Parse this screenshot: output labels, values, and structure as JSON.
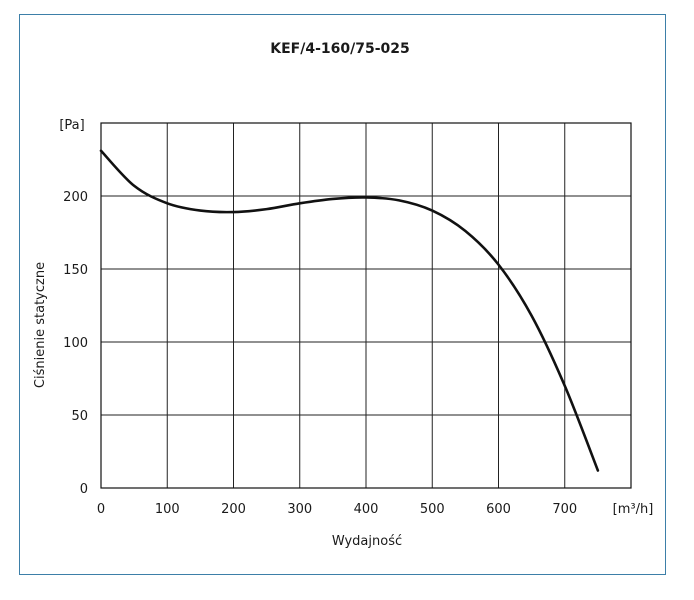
{
  "chart_data": {
    "type": "line",
    "title": "KEF/4-160/75-025",
    "xlabel": "Wydajność",
    "ylabel": "Ciśnienie statyczne",
    "x_unit": "[m³/h]",
    "y_unit": "[Pa]",
    "xlim": [
      0,
      800
    ],
    "ylim": [
      0,
      250
    ],
    "x_ticks": [
      "0",
      "100",
      "200",
      "300",
      "400",
      "500",
      "600",
      "700"
    ],
    "y_ticks": [
      "0",
      "50",
      "100",
      "150",
      "200"
    ],
    "grid": true,
    "series": [
      {
        "color": "#111111",
        "x": [
          0,
          50,
          100,
          150,
          200,
          250,
          300,
          350,
          400,
          450,
          500,
          550,
          600,
          650,
          700,
          750
        ],
        "y": [
          231,
          207,
          195,
          190,
          189,
          191,
          195,
          198,
          199,
          197,
          190,
          176,
          153,
          118,
          70,
          12
        ]
      }
    ]
  }
}
